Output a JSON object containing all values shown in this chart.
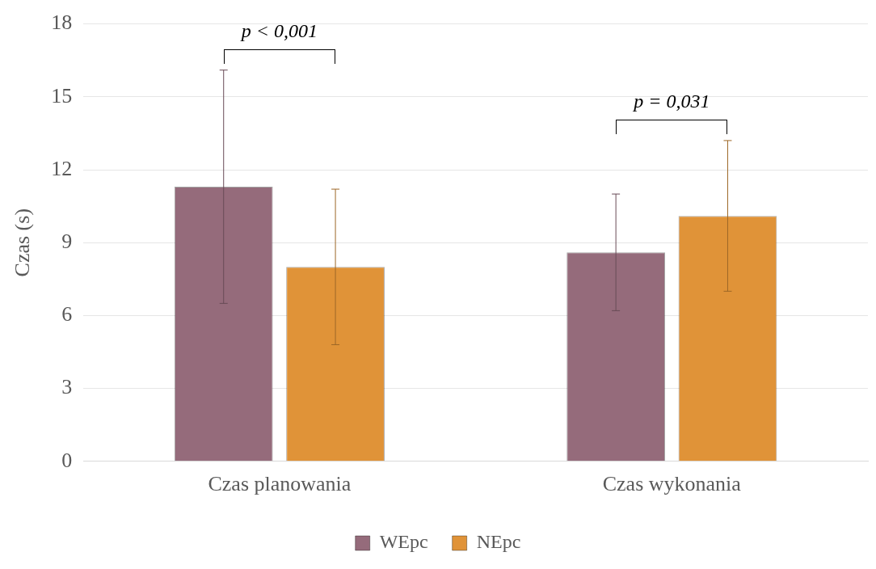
{
  "chart_data": {
    "type": "bar",
    "ylabel": "Czas (s)",
    "categories": [
      "Czas planowania",
      "Czas wykonania"
    ],
    "series": [
      {
        "name": "WEpc",
        "color": "#956b7b",
        "values": [
          11.3,
          8.6
        ],
        "errors": [
          4.8,
          2.4
        ]
      },
      {
        "name": "NEpc",
        "color": "#e09338",
        "values": [
          8.0,
          10.1
        ],
        "errors": [
          3.2,
          3.1
        ]
      }
    ],
    "ylim": [
      0,
      18
    ],
    "yticks": [
      0,
      3,
      6,
      9,
      12,
      15,
      18
    ],
    "grid": "y",
    "legend": "bottom",
    "annotations": [
      "p < 0,001",
      "p = 0,031"
    ]
  }
}
